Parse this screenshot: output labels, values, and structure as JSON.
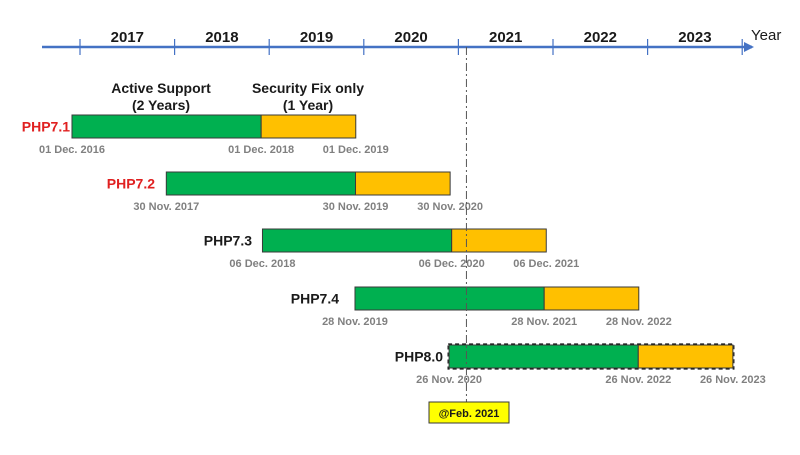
{
  "chart_data": {
    "type": "gantt",
    "time_axis": {
      "years": [
        "2017",
        "2018",
        "2019",
        "2020",
        "2021",
        "2022",
        "2023"
      ],
      "unit_label": "Year",
      "range": [
        "2016-11-01",
        "2023-12-31"
      ]
    },
    "legend_notes": [
      {
        "key": "active",
        "text": "Active Support",
        "subtext": "(2 Years)",
        "color": "#00b050"
      },
      {
        "key": "security",
        "text": "Security Fix only",
        "subtext": "(1 Year)",
        "color": "#ffc000"
      }
    ],
    "series": [
      {
        "name": "PHP7.1",
        "name_color": "#e02020",
        "release": "2016-12-01",
        "active_end": "2018-12-01",
        "security_end": "2019-12-01",
        "labels": [
          "01 Dec. 2016",
          "01 Dec. 2018",
          "01 Dec. 2019"
        ],
        "dashed": false
      },
      {
        "name": "PHP7.2",
        "name_color": "#e02020",
        "release": "2017-11-30",
        "active_end": "2019-11-30",
        "security_end": "2020-11-30",
        "labels": [
          "30 Nov. 2017",
          "30 Nov. 2019",
          "30 Nov. 2020"
        ],
        "dashed": false
      },
      {
        "name": "PHP7.3",
        "name_color": "#1a1a1a",
        "release": "2018-12-06",
        "active_end": "2020-12-06",
        "security_end": "2021-12-06",
        "labels": [
          "06 Dec. 2018",
          "06 Dec. 2020",
          "06 Dec. 2021"
        ],
        "dashed": false
      },
      {
        "name": "PHP7.4",
        "name_color": "#1a1a1a",
        "release": "2019-11-28",
        "active_end": "2021-11-28",
        "security_end": "2022-11-28",
        "labels": [
          "28 Nov. 2019",
          "28 Nov. 2021",
          "28 Nov. 2022"
        ],
        "dashed": false
      },
      {
        "name": "PHP8.0",
        "name_color": "#1a1a1a",
        "release": "2020-11-26",
        "active_end": "2022-11-26",
        "security_end": "2023-11-26",
        "labels": [
          "26 Nov. 2020",
          "26 Nov. 2022",
          "26 Nov. 2023"
        ],
        "dashed": true
      }
    ],
    "marker": {
      "date": "2021-02-01",
      "label": "@Feb. 2021",
      "label_bg": "#ffff00"
    },
    "colors": {
      "axis": "#4472c4",
      "active": "#00b050",
      "security": "#ffc000",
      "date_label": "#808080"
    }
  }
}
